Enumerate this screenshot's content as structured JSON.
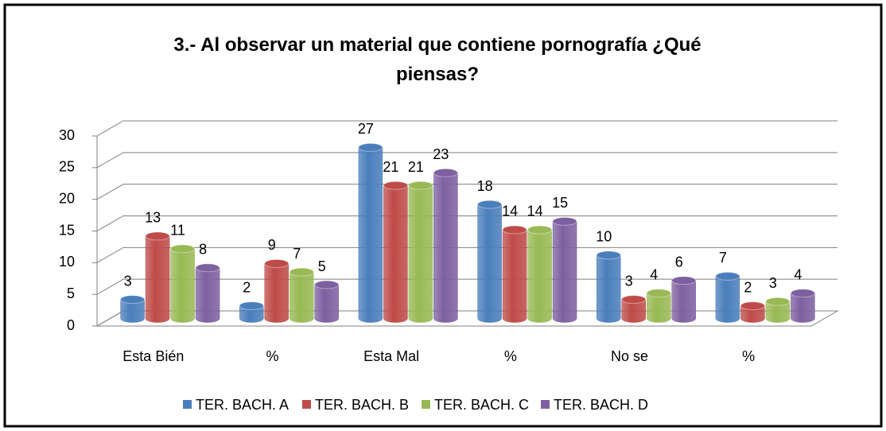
{
  "chart_data": {
    "type": "bar3d",
    "title": "3.- Al observar un material que contiene  pornografía ¿Qué piensas?",
    "categories": [
      "Esta Bién",
      "%",
      "Esta Mal",
      "%",
      "No se",
      "%"
    ],
    "series": [
      {
        "name": "TER. BACH. A",
        "color": "#4a7ebb",
        "values": [
          3,
          2,
          27,
          18,
          10,
          6.67
        ],
        "value_labels": [
          "3",
          "2",
          "27",
          "18",
          "10",
          "7"
        ]
      },
      {
        "name": "TER. BACH. B",
        "color": "#be4b48",
        "values": [
          13,
          8.67,
          21,
          14,
          3,
          2
        ],
        "value_labels": [
          "13",
          "9",
          "21",
          "14",
          "3",
          "2"
        ]
      },
      {
        "name": "TER. BACH. C",
        "color": "#98b954",
        "values": [
          11,
          7.33,
          21,
          14,
          4,
          2.67
        ],
        "value_labels": [
          "11",
          "7",
          "21",
          "14",
          "4",
          "3"
        ]
      },
      {
        "name": "TER. BACH. D",
        "color": "#7d60a0",
        "values": [
          8,
          5.33,
          23,
          15.33,
          6,
          4
        ],
        "value_labels": [
          "8",
          "5",
          "23",
          "15",
          "6",
          "4"
        ]
      }
    ],
    "ylim": [
      0,
      30
    ],
    "yticks": [
      0,
      5,
      10,
      15,
      20,
      25,
      30
    ],
    "grid": true,
    "legend": "bottom"
  }
}
